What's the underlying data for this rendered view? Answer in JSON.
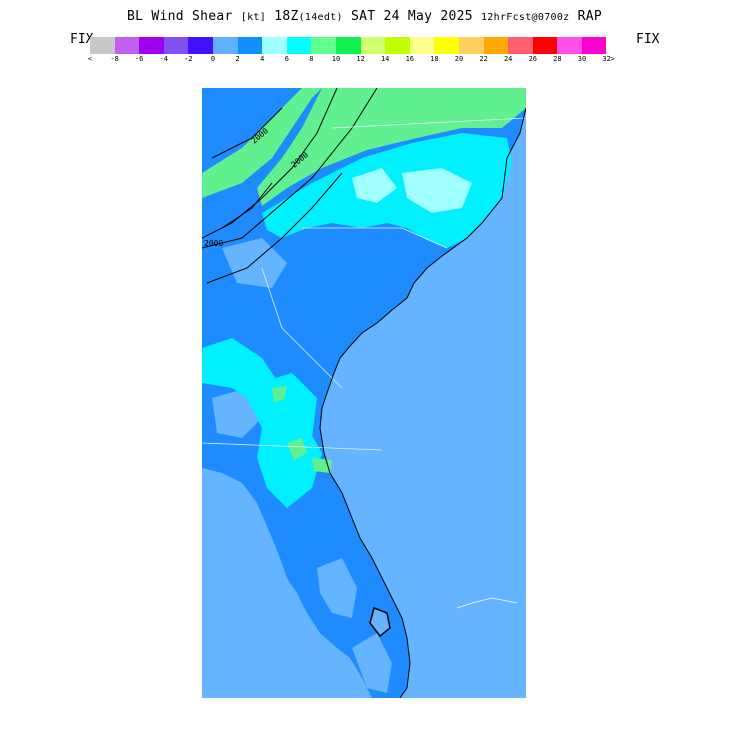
{
  "title": {
    "main": "BL Wind Shear ",
    "unit": "[kt]",
    "time": " 18Z",
    "edt": "(14edt)",
    "date": " SAT 24 May 2025 ",
    "fcst": "12hrFcst@0700z",
    "model": " RAP"
  },
  "fix_left": "FIX",
  "fix_right": "FIX",
  "colorbar": {
    "colors": [
      "#c8c8c8",
      "#c060f0",
      "#a000f0",
      "#8050f0",
      "#4010ff",
      "#60b0ff",
      "#1090ff",
      "#a0ffff",
      "#00ffff",
      "#60ff90",
      "#10f050",
      "#d0ff70",
      "#c0ff00",
      "#ffff90",
      "#ffff00",
      "#ffd060",
      "#ffa800",
      "#ff6070",
      "#ff0000",
      "#ff50e8",
      "#ff00d0"
    ],
    "tick_labels": [
      "<",
      "-8",
      "-6",
      "-4",
      "-2",
      "0",
      "2",
      "4",
      "6",
      "8",
      "10",
      "12",
      "14",
      "16",
      "18",
      "20",
      "22",
      "24",
      "26",
      "28",
      "30",
      "32",
      ">"
    ]
  },
  "map": {
    "ocean_color": "#64b4ff",
    "contour_labels": [
      "2000",
      "2000",
      "2000"
    ]
  }
}
